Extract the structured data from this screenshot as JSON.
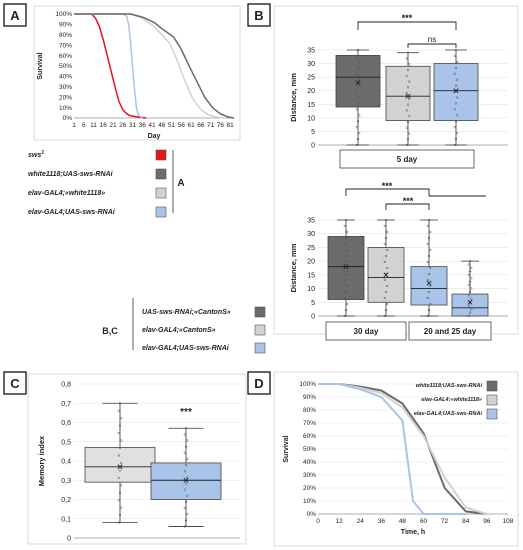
{
  "panel_labels": [
    "A",
    "B",
    "C",
    "D"
  ],
  "colors": {
    "sws1": "#e8141a",
    "white_rnai": "#6b6b6b",
    "elav_white": "#d2d2d2",
    "elav_rnai": "#aac3e8",
    "ctrl_light": "#e0e0e0",
    "ctrl_mid": "#c9c9c9"
  },
  "legend_A": {
    "group_letter": "A",
    "items": [
      {
        "label": "sws1",
        "color": "#e8141a"
      },
      {
        "label": "white1118;UAS-sws-RNAi",
        "color": "#6b6b6b"
      },
      {
        "label": "elav-GAL4;«white1118»",
        "color": "#d2d2d2"
      },
      {
        "label": "elav-GAL4;UAS-sws-RNAi",
        "color": "#aac3e8"
      }
    ]
  },
  "legend_BC": {
    "group_letter": "B,C",
    "items": [
      {
        "label": "UAS-sws-RNAi;«CantonS»",
        "color": "#6b6b6b"
      },
      {
        "label": "elav-GAL4;«CantonS»",
        "color": "#d2d2d2"
      },
      {
        "label": "elav-GAL4;UAS-sws-RNAi",
        "color": "#aac3e8"
      }
    ]
  },
  "chart_data": [
    {
      "id": "A",
      "type": "line",
      "ylabel": "Survival",
      "xlabel": "Day",
      "x_ticks": [
        1,
        6,
        11,
        16,
        21,
        26,
        31,
        36,
        41,
        46,
        51,
        56,
        61,
        66,
        71,
        76,
        81
      ],
      "y_ticks": [
        "0%",
        "10%",
        "20%",
        "30%",
        "40%",
        "50%",
        "60%",
        "70%",
        "80%",
        "90%",
        "100%"
      ],
      "xlim": [
        1,
        83
      ],
      "ylim": [
        0,
        100
      ],
      "series": [
        {
          "key": "sws1",
          "x": [
            1,
            10,
            12,
            14,
            16,
            18,
            20,
            22,
            24,
            26,
            28,
            30,
            34,
            38
          ],
          "y": [
            100,
            100,
            96,
            88,
            75,
            60,
            45,
            30,
            16,
            8,
            4,
            2,
            1,
            0
          ]
        },
        {
          "key": "elav_rnai",
          "x": [
            1,
            26,
            28,
            29,
            30,
            31,
            32,
            33,
            34,
            36
          ],
          "y": [
            100,
            100,
            98,
            90,
            72,
            50,
            28,
            10,
            3,
            0
          ]
        },
        {
          "key": "elav_white",
          "x": [
            1,
            30,
            36,
            42,
            46,
            50,
            54,
            58,
            62,
            66,
            70,
            74,
            78
          ],
          "y": [
            100,
            100,
            96,
            88,
            80,
            72,
            55,
            35,
            18,
            8,
            3,
            1,
            0
          ]
        },
        {
          "key": "white_rnai",
          "x": [
            1,
            30,
            36,
            42,
            46,
            52,
            56,
            60,
            64,
            68,
            72,
            76,
            80,
            83
          ],
          "y": [
            100,
            100,
            97,
            92,
            86,
            78,
            66,
            50,
            35,
            20,
            10,
            4,
            1,
            0
          ]
        }
      ]
    },
    {
      "id": "B5",
      "type": "box",
      "ylabel": "Distance, mm",
      "y_ticks": [
        0,
        5,
        10,
        15,
        20,
        25,
        30,
        35
      ],
      "ylim": [
        0,
        35
      ],
      "group_label": "5 day",
      "significance": [
        {
          "text": "***"
        },
        {
          "text": "ns"
        }
      ],
      "boxes": [
        {
          "key": "white_rnai",
          "min": 0,
          "q1": 14,
          "median": 25,
          "q3": 33,
          "max": 35,
          "mean": 23
        },
        {
          "key": "elav_white",
          "min": 0,
          "q1": 9,
          "median": 18,
          "q3": 29,
          "max": 34,
          "mean": 18
        },
        {
          "key": "elav_rnai",
          "min": 0,
          "q1": 9,
          "median": 20,
          "q3": 30,
          "max": 35,
          "mean": 20
        }
      ]
    },
    {
      "id": "B30",
      "type": "box",
      "ylabel": "Distance, mm",
      "y_ticks": [
        0,
        5,
        10,
        15,
        20,
        25,
        30,
        35
      ],
      "ylim": [
        0,
        35
      ],
      "group_labels": [
        "30 day",
        "20 and 25 day"
      ],
      "significance": [
        {
          "text": "***"
        },
        {
          "text": "***"
        }
      ],
      "boxes": [
        {
          "key": "white_rnai",
          "min": 0,
          "q1": 6,
          "median": 18,
          "q3": 29,
          "max": 35,
          "mean": 18
        },
        {
          "key": "elav_white",
          "min": 0,
          "q1": 5,
          "median": 14,
          "q3": 25,
          "max": 35,
          "mean": 15
        },
        {
          "key": "elav_rnai",
          "min": 0,
          "q1": 4,
          "median": 10,
          "q3": 18,
          "max": 35,
          "mean": 12
        },
        {
          "key": "elav_rnai",
          "min": 0,
          "q1": 0,
          "median": 3,
          "q3": 8,
          "max": 20,
          "mean": 5
        }
      ]
    },
    {
      "id": "C",
      "type": "box",
      "ylabel": "Memory index",
      "y_ticks": [
        "0",
        "0,1",
        "0,2",
        "0,3",
        "0,4",
        "0,5",
        "0,6",
        "0,7",
        "0,8"
      ],
      "ylim": [
        0,
        0.8
      ],
      "significance": [
        {
          "text": "***"
        }
      ],
      "boxes": [
        {
          "key": "ctrl_light",
          "min": 0.08,
          "q1": 0.29,
          "median": 0.37,
          "q3": 0.47,
          "max": 0.7,
          "mean": 0.37
        },
        {
          "key": "elav_rnai",
          "min": 0.06,
          "q1": 0.2,
          "median": 0.3,
          "q3": 0.39,
          "max": 0.57,
          "mean": 0.3
        }
      ]
    },
    {
      "id": "D",
      "type": "line",
      "ylabel": "Survival",
      "xlabel": "Time, h",
      "x_ticks": [
        0,
        12,
        24,
        36,
        48,
        60,
        72,
        84,
        96,
        108
      ],
      "y_ticks": [
        "0%",
        "10%",
        "20%",
        "30%",
        "40%",
        "50%",
        "60%",
        "70%",
        "80%",
        "90%",
        "100%"
      ],
      "xlim": [
        0,
        108
      ],
      "ylim": [
        0,
        100
      ],
      "series": [
        {
          "key": "white_rnai",
          "label": "white1118;UAS-sws-RNAi",
          "x": [
            0,
            12,
            24,
            36,
            48,
            60,
            72,
            84,
            96
          ],
          "y": [
            100,
            100,
            98,
            95,
            85,
            62,
            20,
            2,
            0
          ]
        },
        {
          "key": "elav_white",
          "label": "elav-GAL4;«white1118»",
          "x": [
            0,
            12,
            24,
            36,
            48,
            60,
            72,
            84,
            96
          ],
          "y": [
            100,
            100,
            97,
            93,
            82,
            60,
            28,
            5,
            0
          ]
        },
        {
          "key": "elav_rnai",
          "label": "elav-GAL4;UAS-sws-RNAi",
          "x": [
            0,
            12,
            24,
            36,
            48,
            54,
            60,
            72,
            84
          ],
          "y": [
            100,
            100,
            96,
            90,
            72,
            10,
            0,
            0,
            0
          ]
        }
      ]
    }
  ]
}
